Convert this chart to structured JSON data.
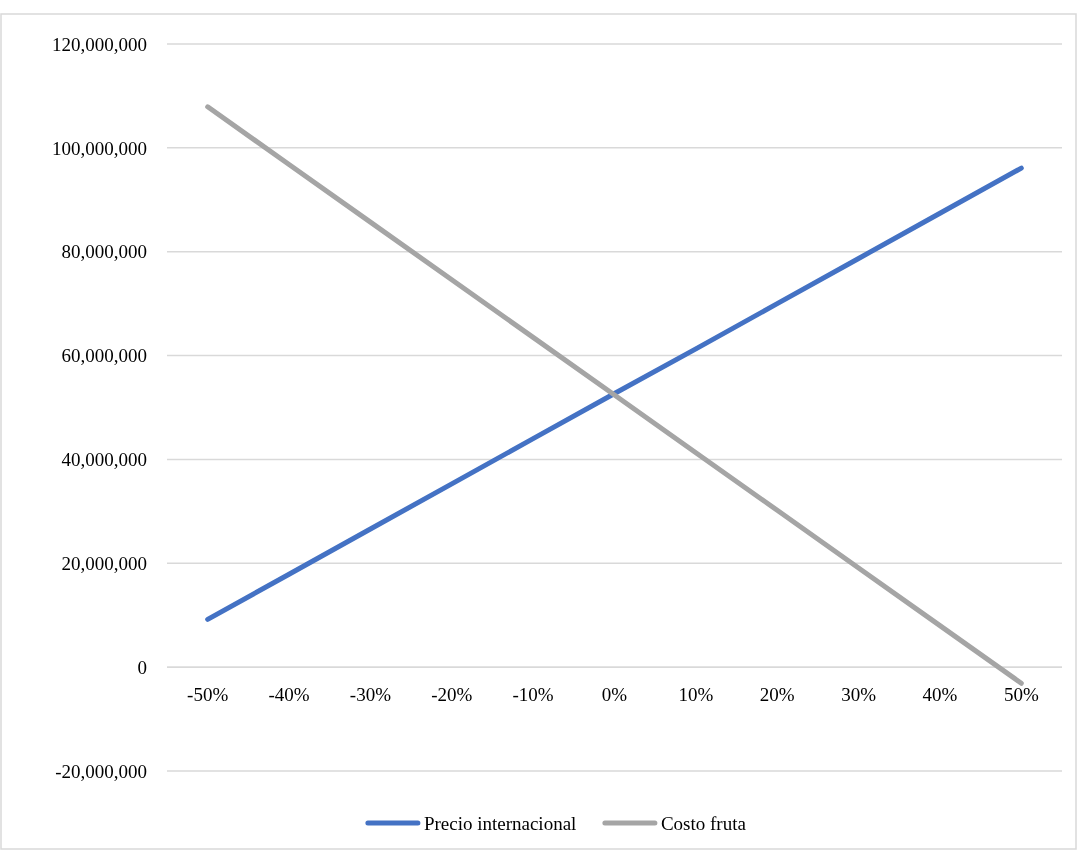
{
  "chart_data": {
    "type": "line",
    "categories": [
      "-50%",
      "-40%",
      "-30%",
      "-20%",
      "-10%",
      "0%",
      "10%",
      "20%",
      "30%",
      "40%",
      "50%"
    ],
    "series": [
      {
        "name": "Precio internacional",
        "color": "#4472c4",
        "values": [
          9200000,
          17900000,
          26600000,
          35300000,
          44000000,
          52700000,
          61300000,
          70000000,
          78700000,
          87400000,
          96100000
        ]
      },
      {
        "name": "Costo fruta",
        "color": "#a5a5a5",
        "values": [
          107900000,
          96800000,
          85700000,
          74600000,
          63500000,
          52400000,
          41300000,
          30200000,
          19100000,
          8000000,
          -3100000
        ]
      }
    ],
    "ylim": [
      -20000000,
      120000000
    ],
    "yticks": [
      {
        "value": -20000000,
        "label": "-20,000,000"
      },
      {
        "value": 0,
        "label": "0"
      },
      {
        "value": 20000000,
        "label": "20,000,000"
      },
      {
        "value": 40000000,
        "label": "40,000,000"
      },
      {
        "value": 60000000,
        "label": "60,000,000"
      },
      {
        "value": 80000000,
        "label": "80,000,000"
      },
      {
        "value": 100000000,
        "label": "100,000,000"
      },
      {
        "value": 120000000,
        "label": "120,000,000"
      }
    ],
    "grid": "y",
    "legend": "bottom",
    "marker": "none",
    "line_style": "solid"
  }
}
